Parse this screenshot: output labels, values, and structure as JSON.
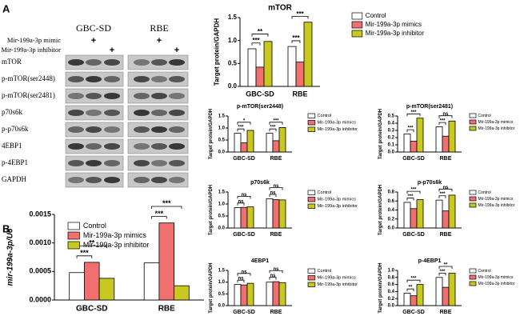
{
  "blot": {
    "label": "A",
    "cell_lines": [
      {
        "name": "GBC-SD",
        "color": "#e02020"
      },
      {
        "name": "RBE",
        "color": "#2030d0"
      }
    ],
    "treatments": [
      {
        "name": "Mir-199a-3p mimic",
        "marks": [
          null,
          "+",
          null,
          null,
          "+",
          null
        ]
      },
      {
        "name": "Mir-199a-3p inhibitor",
        "marks": [
          null,
          null,
          "+",
          null,
          null,
          "+"
        ]
      }
    ],
    "rows": [
      "mTOR",
      "p-mTOR(ser2448)",
      "p-mTOR(ser2481)",
      "p70s6k",
      "p-p70s6k",
      "4EBP1",
      "p-4EBP1",
      "GAPDH"
    ]
  },
  "panel_b_label": "B",
  "chart_data": [
    {
      "type": "bar",
      "title": "mTOR",
      "ylabel": "Target protein/GAPDH",
      "categories": [
        "GBC-SD",
        "RBE"
      ],
      "series": [
        {
          "name": "Control",
          "color": "#ffffff",
          "values": [
            0.82,
            0.87
          ]
        },
        {
          "name": "Mir-199a-3p mimics",
          "color": "#f07070",
          "values": [
            0.42,
            0.53
          ]
        },
        {
          "name": "Mir-199a-3p inhibitor",
          "color": "#c8c820",
          "values": [
            0.98,
            1.4
          ]
        }
      ],
      "ylim": [
        0,
        1.5
      ],
      "yticks": [
        {
          "value": 0,
          "label": "0.0"
        },
        {
          "value": 0.5,
          "label": "0.5"
        },
        {
          "value": 1,
          "label": "1.0"
        },
        {
          "value": 1.5,
          "label": "1.5"
        }
      ],
      "significance": [
        [
          "***",
          "**"
        ],
        [
          "***",
          "***"
        ]
      ]
    },
    {
      "type": "bar",
      "title": "p-mTOR(ser2448)",
      "ylabel": "Target protein/GAPDH",
      "categories": [
        "GBC-SD",
        "RBE"
      ],
      "series": [
        {
          "name": "Control",
          "color": "#ffffff",
          "values": [
            0.78,
            0.78
          ]
        },
        {
          "name": "Mir-199a-3p mimics",
          "color": "#f07070",
          "values": [
            0.38,
            0.47
          ]
        },
        {
          "name": "Mir-199a-3p inhibitor",
          "color": "#c8c820",
          "values": [
            0.9,
            1.02
          ]
        }
      ],
      "ylim": [
        0,
        1.5
      ],
      "yticks": [
        {
          "value": 0,
          "label": "0.0"
        },
        {
          "value": 0.5,
          "label": "0.5"
        },
        {
          "value": 1,
          "label": "1.0"
        },
        {
          "value": 1.5,
          "label": "1.5"
        }
      ],
      "significance": [
        [
          "***",
          "*"
        ],
        [
          "***",
          "***"
        ]
      ]
    },
    {
      "type": "bar",
      "title": "p-mTOR(ser2481)",
      "ylabel": "Target protein/GAPDH",
      "categories": [
        "GBC-SD",
        "RBE"
      ],
      "series": [
        {
          "name": "Control",
          "color": "#ffffff",
          "values": [
            0.25,
            0.35
          ]
        },
        {
          "name": "Mir-199a-3p mimics",
          "color": "#f07070",
          "values": [
            0.15,
            0.22
          ]
        },
        {
          "name": "Mir-199a-3p inhibitor",
          "color": "#c8c820",
          "values": [
            0.47,
            0.43
          ]
        }
      ],
      "ylim": [
        0,
        0.5
      ],
      "yticks": [
        {
          "value": 0,
          "label": "0.0"
        },
        0.1,
        0.2,
        0.3,
        0.4,
        0.5
      ],
      "significance": [
        [
          "***",
          "***"
        ],
        [
          "***",
          "ns"
        ]
      ]
    },
    {
      "type": "bar",
      "title": "p70s6k",
      "ylabel": "Target protein/GAPDH",
      "categories": [
        "GBC-SD",
        "RBE"
      ],
      "series": [
        {
          "name": "Control",
          "color": "#ffffff",
          "values": [
            0.85,
            1.22
          ]
        },
        {
          "name": "Mir-199a-3p mimics",
          "color": "#f07070",
          "values": [
            0.86,
            1.18
          ]
        },
        {
          "name": "Mir-199a-3p inhibitor",
          "color": "#c8c820",
          "values": [
            0.88,
            1.17
          ]
        }
      ],
      "ylim": [
        0,
        1.5
      ],
      "yticks": [
        {
          "value": 0,
          "label": "0.0"
        },
        {
          "value": 0.5,
          "label": "0.5"
        },
        {
          "value": 1,
          "label": "1.0"
        },
        {
          "value": 1.5,
          "label": "1.5"
        }
      ],
      "significance": [
        [
          "ns",
          "ns"
        ],
        [
          "ns",
          "ns"
        ]
      ]
    },
    {
      "type": "bar",
      "title": "p-p70s6k",
      "ylabel": "Target protein/GAPDH",
      "categories": [
        "GBC-SD",
        "RBE"
      ],
      "series": [
        {
          "name": "Control",
          "color": "#ffffff",
          "values": [
            0.57,
            0.62
          ]
        },
        {
          "name": "Mir-199a-3p mimics",
          "color": "#f07070",
          "values": [
            0.43,
            0.38
          ]
        },
        {
          "name": "Mir-199a-3p inhibitor",
          "color": "#c8c820",
          "values": [
            0.63,
            0.73
          ]
        }
      ],
      "ylim": [
        0,
        0.8
      ],
      "yticks": [
        {
          "value": 0,
          "label": "0.0"
        },
        0.2,
        0.4,
        0.6,
        0.8
      ],
      "significance": [
        [
          "***",
          "***"
        ],
        [
          "***",
          "ns"
        ]
      ]
    },
    {
      "type": "bar",
      "title": "4EBP1",
      "ylabel": "Target protein/GAPDH",
      "categories": [
        "GBC-SD",
        "RBE"
      ],
      "series": [
        {
          "name": "Control",
          "color": "#ffffff",
          "values": [
            0.9,
            1.0
          ]
        },
        {
          "name": "Mir-199a-3p mimics",
          "color": "#f07070",
          "values": [
            0.88,
            1.02
          ]
        },
        {
          "name": "Mir-199a-3p inhibitor",
          "color": "#c8c820",
          "values": [
            0.95,
            0.98
          ]
        }
      ],
      "ylim": [
        0,
        1.5
      ],
      "yticks": [
        {
          "value": 0,
          "label": "0.0"
        },
        {
          "value": 0.5,
          "label": "0.5"
        },
        {
          "value": 1,
          "label": "1.0"
        },
        {
          "value": 1.5,
          "label": "1.5"
        }
      ],
      "significance": [
        [
          "ns",
          "ns"
        ],
        [
          "ns",
          "ns"
        ]
      ]
    },
    {
      "type": "bar",
      "title": "p-4EBP1",
      "ylabel": "Target protein/GAPDH",
      "categories": [
        "GBC-SD",
        "RBE"
      ],
      "series": [
        {
          "name": "Control",
          "color": "#ffffff",
          "values": [
            0.35,
            0.8
          ]
        },
        {
          "name": "Mir-199a-3p mimics",
          "color": "#f07070",
          "values": [
            0.28,
            0.52
          ]
        },
        {
          "name": "Mir-199a-3p inhibitor",
          "color": "#c8c820",
          "values": [
            0.6,
            0.92
          ]
        }
      ],
      "ylim": [
        0,
        1
      ],
      "yticks": [
        {
          "value": 0,
          "label": "0.0"
        },
        0.2,
        0.4,
        0.6,
        0.8,
        {
          "value": 1,
          "label": "1.0"
        }
      ],
      "significance": [
        [
          "**",
          "***"
        ],
        [
          "***",
          "**"
        ]
      ]
    },
    {
      "type": "bar",
      "ylabel": "mir-199a-3p/U6",
      "categories": [
        "GBC-SD",
        "RBE"
      ],
      "series": [
        {
          "name": "Control",
          "color": "#ffffff",
          "values": [
            0.00048,
            0.00065
          ]
        },
        {
          "name": "Mir-199a-3p mimics",
          "color": "#f07070",
          "values": [
            0.00066,
            0.00135
          ]
        },
        {
          "name": "Mir-199a-3p inhibitor",
          "color": "#c8c820",
          "values": [
            0.00038,
            0.00025
          ]
        }
      ],
      "ylim": [
        0,
        0.0015
      ],
      "yticks": [
        {
          "value": 0,
          "label": "0.0000"
        },
        {
          "value": 0.0005,
          "label": "0.0005"
        },
        {
          "value": 0.001,
          "label": "0.0010"
        },
        {
          "value": 0.0015,
          "label": "0.0015"
        }
      ],
      "significance": [
        [
          "***",
          "**"
        ],
        [
          "***",
          "***"
        ]
      ]
    }
  ]
}
